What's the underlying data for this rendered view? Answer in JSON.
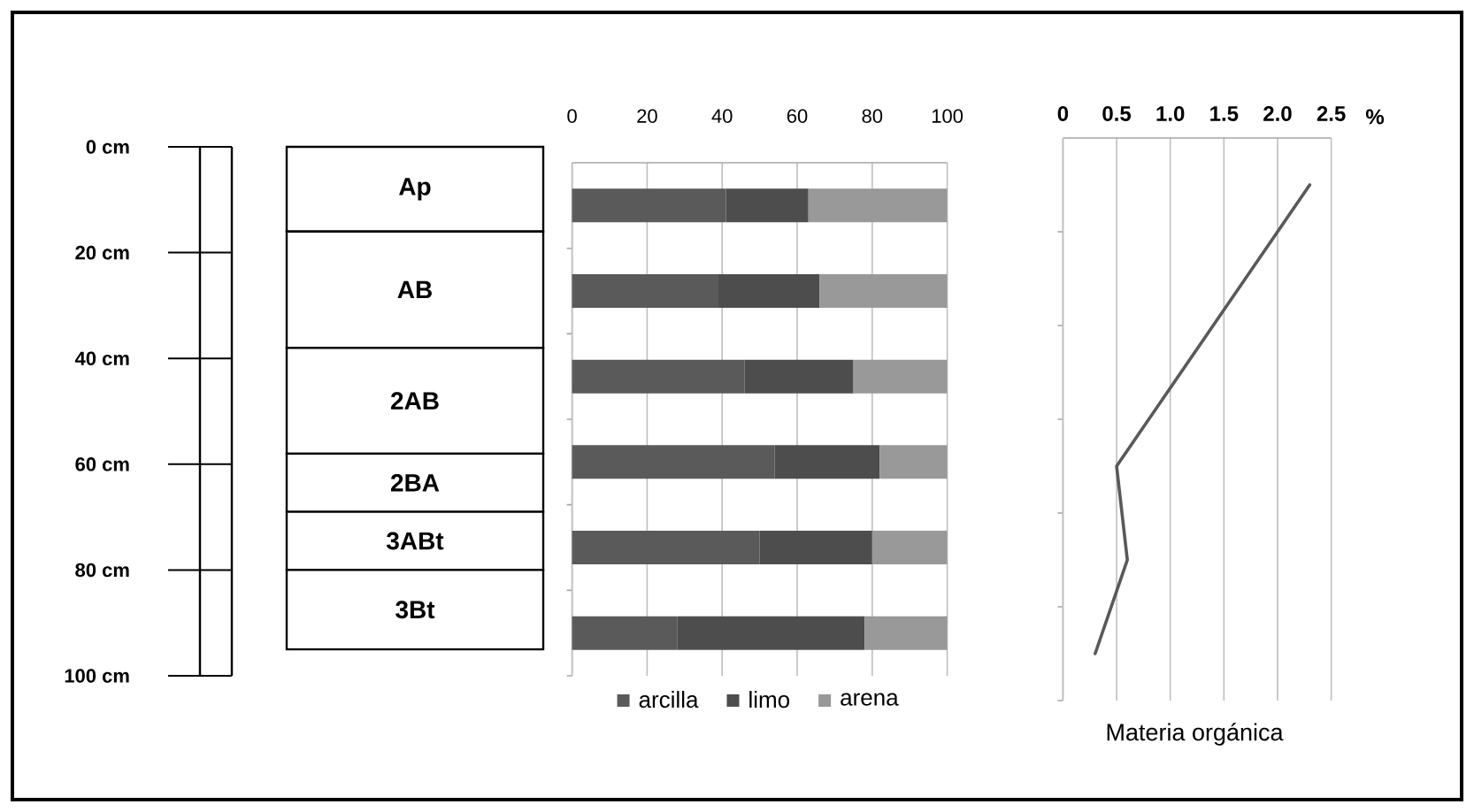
{
  "chart_data": [
    {
      "type": "bar",
      "stacked": true,
      "categories": [
        null
      ],
      "ylim": [
        100,
        0
      ],
      "yticks": [
        {
          "value": 0,
          "label": "0 cm"
        },
        {
          "value": 20,
          "label": "20 cm"
        },
        {
          "value": 40,
          "label": "40 cm"
        },
        {
          "value": 60,
          "label": "60 cm"
        },
        {
          "value": 80,
          "label": "80 cm"
        },
        {
          "value": 100,
          "label": "100 cm"
        }
      ],
      "series": [
        {
          "name": "Ap",
          "color": "#ffffff",
          "values": [
            16
          ]
        },
        {
          "name": "AB",
          "color": "#ffffff",
          "values": [
            22
          ]
        },
        {
          "name": "2AB",
          "color": "#ffffff",
          "values": [
            20
          ]
        },
        {
          "name": "2BA",
          "color": "#ffffff",
          "values": [
            11
          ]
        },
        {
          "name": "3ABt",
          "color": "#ffffff",
          "values": [
            11
          ]
        },
        {
          "name": "3Bt",
          "color": "#ffffff",
          "values": [
            15
          ]
        }
      ]
    },
    {
      "type": "bar",
      "orientation": "horizontal",
      "stacked": true,
      "categories": [
        null,
        null,
        null,
        null,
        null,
        null
      ],
      "xlim": [
        0,
        100
      ],
      "xticks": [
        0,
        20,
        40,
        60,
        80,
        100
      ],
      "grid": "x",
      "legend": "bottom",
      "series": [
        {
          "name": "arcilla",
          "color": "#5a5a5a",
          "values": [
            41,
            39,
            46,
            54,
            50,
            28
          ]
        },
        {
          "name": "limo",
          "color": "#4d4d4d",
          "values": [
            22,
            27,
            29,
            28,
            30,
            50
          ]
        },
        {
          "name": "arena",
          "color": "#999999",
          "values": [
            37,
            34,
            25,
            18,
            20,
            22
          ]
        }
      ]
    },
    {
      "type": "line",
      "orientation": "horizontal",
      "categories": [
        null,
        null,
        null,
        null,
        null,
        null
      ],
      "values": [
        2.3,
        1.7,
        1.1,
        0.5,
        0.6,
        0.3
      ],
      "color": "#595959",
      "xlim": [
        0,
        2.5
      ],
      "xticks": [
        0,
        0.5,
        {
          "value": 1,
          "label": "1.0"
        },
        1.5,
        {
          "value": 2,
          "label": "2.0"
        },
        2.5
      ],
      "grid": "x",
      "xlabel": "Materia orgánica",
      "annotations": [
        "%"
      ]
    }
  ]
}
